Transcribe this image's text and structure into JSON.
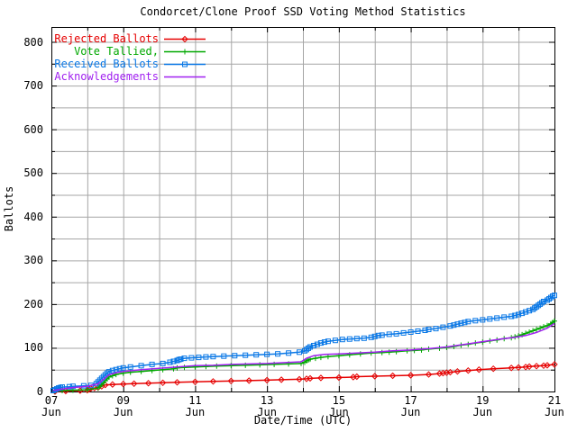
{
  "title": "Condorcet/Clone Proof SSD Voting Method Statistics",
  "chart_data": {
    "type": "line",
    "title": "Condorcet/Clone Proof SSD Voting Method Statistics",
    "xlabel": "Date/Time (UTC)",
    "ylabel": "Ballots",
    "x_unit": "day of June (UTC)",
    "xlim": [
      7,
      21
    ],
    "ylim": [
      0,
      834
    ],
    "grid": true,
    "grid_color": "#a6a6a6",
    "border_color": "#000000",
    "background": "#ffffff",
    "legend_position": "top-left-inside",
    "y_ticks": [
      0,
      100,
      200,
      300,
      400,
      500,
      600,
      700,
      800
    ],
    "y_minor_step": 50,
    "x_minor_step_days": 1,
    "x_ticks": [
      {
        "day": 7,
        "label": "07"
      },
      {
        "day": 9,
        "label": "09"
      },
      {
        "day": 11,
        "label": "11"
      },
      {
        "day": 13,
        "label": "13"
      },
      {
        "day": 15,
        "label": "15"
      },
      {
        "day": 17,
        "label": "17"
      },
      {
        "day": 19,
        "label": "19"
      },
      {
        "day": 21,
        "label": "21"
      }
    ],
    "x_tick_month": "Jun",
    "series": [
      {
        "name": "Rejected Ballots",
        "color": "#e60000",
        "marker": "diamond",
        "points": [
          [
            7.1,
            0
          ],
          [
            7.4,
            1
          ],
          [
            7.8,
            2
          ],
          [
            8.0,
            3
          ],
          [
            8.05,
            5
          ],
          [
            8.1,
            7
          ],
          [
            8.2,
            8
          ],
          [
            8.3,
            9
          ],
          [
            8.4,
            12
          ],
          [
            8.5,
            15
          ],
          [
            8.7,
            16
          ],
          [
            9.0,
            17
          ],
          [
            9.3,
            18
          ],
          [
            9.7,
            19
          ],
          [
            10.1,
            20
          ],
          [
            10.5,
            21
          ],
          [
            11.0,
            22
          ],
          [
            11.5,
            23
          ],
          [
            12.0,
            24
          ],
          [
            12.5,
            25
          ],
          [
            13.0,
            26
          ],
          [
            13.4,
            27
          ],
          [
            13.9,
            28
          ],
          [
            14.1,
            29
          ],
          [
            14.2,
            30
          ],
          [
            14.5,
            31
          ],
          [
            15.0,
            32
          ],
          [
            15.4,
            33
          ],
          [
            15.5,
            34
          ],
          [
            16.0,
            35
          ],
          [
            16.5,
            36
          ],
          [
            17.0,
            37
          ],
          [
            17.5,
            39
          ],
          [
            17.8,
            41
          ],
          [
            17.9,
            42
          ],
          [
            18.0,
            43
          ],
          [
            18.1,
            44
          ],
          [
            18.3,
            46
          ],
          [
            18.6,
            48
          ],
          [
            18.9,
            50
          ],
          [
            19.3,
            52
          ],
          [
            19.8,
            54
          ],
          [
            20.0,
            55
          ],
          [
            20.2,
            56
          ],
          [
            20.3,
            57
          ],
          [
            20.5,
            58
          ],
          [
            20.7,
            59
          ],
          [
            20.8,
            60
          ],
          [
            21.0,
            62
          ]
        ]
      },
      {
        "name": "Vote Tallied,",
        "color": "#00a800",
        "marker": "plus",
        "points": [
          [
            7.1,
            1
          ],
          [
            7.3,
            2
          ],
          [
            7.6,
            3
          ],
          [
            8.0,
            4
          ],
          [
            8.3,
            8
          ],
          [
            8.35,
            12
          ],
          [
            8.4,
            16
          ],
          [
            8.45,
            20
          ],
          [
            8.5,
            25
          ],
          [
            8.55,
            29
          ],
          [
            8.6,
            33
          ],
          [
            8.7,
            36
          ],
          [
            8.8,
            39
          ],
          [
            9.0,
            42
          ],
          [
            9.2,
            44
          ],
          [
            9.5,
            46
          ],
          [
            9.8,
            48
          ],
          [
            10.1,
            50
          ],
          [
            10.4,
            52
          ],
          [
            10.5,
            54
          ],
          [
            10.7,
            55
          ],
          [
            11.0,
            56
          ],
          [
            11.3,
            57
          ],
          [
            11.6,
            58
          ],
          [
            12.0,
            59
          ],
          [
            12.4,
            60
          ],
          [
            12.8,
            61
          ],
          [
            13.2,
            62
          ],
          [
            13.6,
            63
          ],
          [
            13.95,
            64
          ],
          [
            14.05,
            67
          ],
          [
            14.1,
            70
          ],
          [
            14.15,
            72
          ],
          [
            14.2,
            74
          ],
          [
            14.35,
            76
          ],
          [
            14.5,
            78
          ],
          [
            14.7,
            80
          ],
          [
            15.0,
            82
          ],
          [
            15.3,
            84
          ],
          [
            15.6,
            86
          ],
          [
            15.9,
            88
          ],
          [
            16.2,
            89
          ],
          [
            16.4,
            90
          ],
          [
            16.6,
            91
          ],
          [
            16.9,
            93
          ],
          [
            17.1,
            94
          ],
          [
            17.3,
            95
          ],
          [
            17.5,
            97
          ],
          [
            17.8,
            99
          ],
          [
            18.0,
            101
          ],
          [
            18.2,
            103
          ],
          [
            18.4,
            106
          ],
          [
            18.6,
            108
          ],
          [
            18.8,
            111
          ],
          [
            19.0,
            113
          ],
          [
            19.2,
            116
          ],
          [
            19.4,
            118
          ],
          [
            19.6,
            121
          ],
          [
            19.8,
            123
          ],
          [
            19.9,
            125
          ],
          [
            20.0,
            127
          ],
          [
            20.1,
            130
          ],
          [
            20.2,
            133
          ],
          [
            20.3,
            136
          ],
          [
            20.4,
            139
          ],
          [
            20.5,
            142
          ],
          [
            20.6,
            145
          ],
          [
            20.7,
            148
          ],
          [
            20.8,
            151
          ],
          [
            20.9,
            155
          ],
          [
            20.95,
            158
          ],
          [
            21.0,
            161
          ]
        ]
      },
      {
        "name": "Received Ballots",
        "color": "#0a78e6",
        "marker": "square",
        "points": [
          [
            7.05,
            2
          ],
          [
            7.1,
            4
          ],
          [
            7.15,
            6
          ],
          [
            7.2,
            8
          ],
          [
            7.25,
            9
          ],
          [
            7.3,
            10
          ],
          [
            7.5,
            11
          ],
          [
            7.6,
            12
          ],
          [
            7.9,
            13
          ],
          [
            8.1,
            14
          ],
          [
            8.25,
            18
          ],
          [
            8.3,
            22
          ],
          [
            8.35,
            26
          ],
          [
            8.4,
            30
          ],
          [
            8.45,
            34
          ],
          [
            8.5,
            38
          ],
          [
            8.55,
            42
          ],
          [
            8.6,
            45
          ],
          [
            8.7,
            48
          ],
          [
            8.8,
            50
          ],
          [
            8.9,
            52
          ],
          [
            9.0,
            54
          ],
          [
            9.2,
            56
          ],
          [
            9.5,
            59
          ],
          [
            9.8,
            62
          ],
          [
            10.1,
            64
          ],
          [
            10.3,
            67
          ],
          [
            10.4,
            69
          ],
          [
            10.5,
            71
          ],
          [
            10.55,
            73
          ],
          [
            10.6,
            74
          ],
          [
            10.7,
            76
          ],
          [
            10.9,
            77
          ],
          [
            11.1,
            78
          ],
          [
            11.3,
            79
          ],
          [
            11.5,
            80
          ],
          [
            11.8,
            81
          ],
          [
            12.1,
            82
          ],
          [
            12.4,
            83
          ],
          [
            12.7,
            84
          ],
          [
            13.0,
            85
          ],
          [
            13.3,
            86
          ],
          [
            13.6,
            88
          ],
          [
            13.9,
            90
          ],
          [
            14.05,
            93
          ],
          [
            14.1,
            96
          ],
          [
            14.15,
            99
          ],
          [
            14.2,
            102
          ],
          [
            14.3,
            105
          ],
          [
            14.4,
            108
          ],
          [
            14.5,
            111
          ],
          [
            14.6,
            113
          ],
          [
            14.7,
            115
          ],
          [
            14.9,
            117
          ],
          [
            15.1,
            119
          ],
          [
            15.3,
            120
          ],
          [
            15.5,
            121
          ],
          [
            15.7,
            122
          ],
          [
            15.9,
            124
          ],
          [
            16.0,
            126
          ],
          [
            16.1,
            128
          ],
          [
            16.2,
            129
          ],
          [
            16.4,
            131
          ],
          [
            16.6,
            132
          ],
          [
            16.8,
            134
          ],
          [
            17.0,
            136
          ],
          [
            17.2,
            138
          ],
          [
            17.4,
            140
          ],
          [
            17.5,
            142
          ],
          [
            17.7,
            144
          ],
          [
            17.9,
            147
          ],
          [
            18.1,
            150
          ],
          [
            18.2,
            152
          ],
          [
            18.3,
            154
          ],
          [
            18.4,
            156
          ],
          [
            18.5,
            158
          ],
          [
            18.6,
            160
          ],
          [
            18.8,
            162
          ],
          [
            19.0,
            164
          ],
          [
            19.2,
            166
          ],
          [
            19.4,
            168
          ],
          [
            19.6,
            170
          ],
          [
            19.8,
            172
          ],
          [
            19.9,
            174
          ],
          [
            20.0,
            176
          ],
          [
            20.1,
            179
          ],
          [
            20.2,
            182
          ],
          [
            20.3,
            185
          ],
          [
            20.4,
            188
          ],
          [
            20.45,
            191
          ],
          [
            20.5,
            194
          ],
          [
            20.55,
            197
          ],
          [
            20.6,
            200
          ],
          [
            20.65,
            203
          ],
          [
            20.7,
            206
          ],
          [
            20.8,
            209
          ],
          [
            20.85,
            212
          ],
          [
            20.9,
            215
          ],
          [
            20.95,
            218
          ],
          [
            21.0,
            220
          ]
        ]
      },
      {
        "name": "Acknowledgements",
        "color": "#a020f0",
        "marker": "none",
        "points": [
          [
            7.05,
            2
          ],
          [
            7.3,
            6
          ],
          [
            7.6,
            9
          ],
          [
            8.0,
            12
          ],
          [
            8.3,
            18
          ],
          [
            8.45,
            28
          ],
          [
            8.6,
            38
          ],
          [
            8.8,
            43
          ],
          [
            9.0,
            46
          ],
          [
            9.5,
            50
          ],
          [
            10.0,
            53
          ],
          [
            10.5,
            56
          ],
          [
            11.0,
            59
          ],
          [
            11.5,
            60
          ],
          [
            12.0,
            62
          ],
          [
            12.5,
            63
          ],
          [
            13.0,
            64
          ],
          [
            13.5,
            66
          ],
          [
            13.95,
            68
          ],
          [
            14.1,
            76
          ],
          [
            14.3,
            82
          ],
          [
            14.6,
            85
          ],
          [
            15.0,
            86
          ],
          [
            15.5,
            88
          ],
          [
            16.0,
            90
          ],
          [
            16.5,
            93
          ],
          [
            17.0,
            95
          ],
          [
            17.5,
            98
          ],
          [
            18.0,
            102
          ],
          [
            18.5,
            108
          ],
          [
            19.0,
            114
          ],
          [
            19.5,
            120
          ],
          [
            19.9,
            124
          ],
          [
            20.2,
            128
          ],
          [
            20.5,
            135
          ],
          [
            20.8,
            145
          ],
          [
            21.0,
            156
          ]
        ]
      }
    ]
  }
}
